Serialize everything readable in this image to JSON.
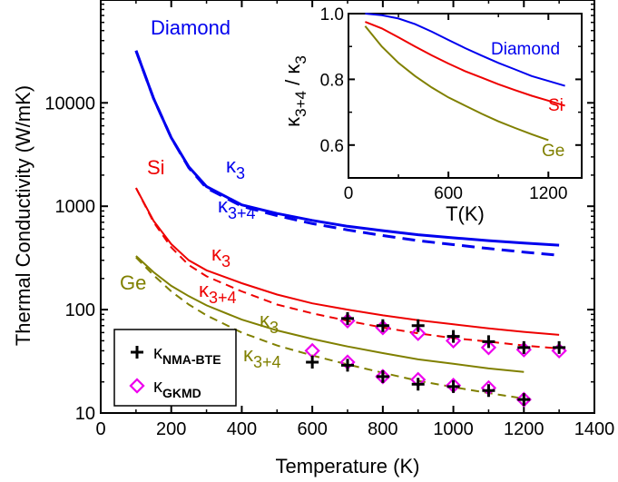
{
  "chart_data": [
    {
      "type": "line",
      "xlabel": "Temperature (K)",
      "ylabel": "Thermal Conductivity (W/mK)",
      "xlim": [
        0,
        1400
      ],
      "ylim": [
        10,
        60000
      ],
      "yscale": "log",
      "xticks": [
        "0",
        "200",
        "400",
        "600",
        "800",
        "1000",
        "1200",
        "1400"
      ],
      "yticks": [
        "10",
        "100",
        "1000",
        "10000"
      ],
      "grid": false,
      "legend": "bottom-left",
      "legend_entries": [
        "κNMA-BTE",
        "κGKMD"
      ],
      "annotations": {
        "diamond": "Diamond",
        "si": "Si",
        "ge": "Ge",
        "k3_diamond": "κ3",
        "k34_diamond": "κ3+4",
        "k3_si": "κ3",
        "k34_si": "κ3+4",
        "k3_ge": "κ3",
        "k34_ge": "κ3+4"
      },
      "colors": {
        "diamond": "#0000ee",
        "si": "#ee0000",
        "ge": "#808000",
        "nma": "#000000",
        "gkmd": "#ee00ee"
      },
      "series": [
        {
          "material": "Diamond",
          "style": "solid",
          "x": [
            100,
            150,
            200,
            250,
            300,
            400,
            500,
            600,
            700,
            800,
            900,
            1000,
            1100,
            1200,
            1300
          ],
          "values": [
            32000,
            11000,
            4600,
            2400,
            1550,
            1030,
            850,
            730,
            640,
            580,
            530,
            495,
            465,
            440,
            420
          ]
        },
        {
          "material": "Diamond",
          "style": "dashed",
          "x": [
            100,
            150,
            200,
            250,
            300,
            400,
            500,
            600,
            700,
            800,
            900,
            1000,
            1100,
            1200,
            1300
          ],
          "values": [
            32000,
            11000,
            4600,
            2350,
            1500,
            1000,
            810,
            680,
            590,
            520,
            465,
            425,
            390,
            360,
            335
          ]
        },
        {
          "material": "Si",
          "style": "solid",
          "x": [
            100,
            150,
            200,
            250,
            300,
            400,
            500,
            600,
            700,
            800,
            900,
            1000,
            1100,
            1200,
            1300
          ],
          "values": [
            1500,
            720,
            430,
            300,
            240,
            180,
            140,
            115,
            100,
            88,
            79,
            72,
            66,
            61,
            57
          ]
        },
        {
          "material": "Si",
          "style": "dashed",
          "x": [
            100,
            150,
            200,
            250,
            300,
            400,
            500,
            600,
            700,
            800,
            900,
            1000,
            1100,
            1200,
            1300
          ],
          "values": [
            1500,
            700,
            400,
            270,
            210,
            150,
            112,
            92,
            78,
            67,
            59,
            53,
            49,
            45,
            42
          ]
        },
        {
          "material": "Ge",
          "style": "solid",
          "x": [
            100,
            150,
            200,
            250,
            300,
            400,
            500,
            600,
            700,
            800,
            900,
            1000,
            1100,
            1200
          ],
          "values": [
            330,
            230,
            170,
            135,
            110,
            80,
            63,
            52,
            44,
            38,
            33,
            30,
            27,
            25
          ]
        },
        {
          "material": "Ge",
          "style": "dashed",
          "x": [
            100,
            150,
            200,
            250,
            300,
            400,
            500,
            600,
            700,
            800,
            900,
            1000,
            1100,
            1200
          ],
          "values": [
            320,
            215,
            150,
            112,
            88,
            60,
            45,
            36,
            29.5,
            24.5,
            20.5,
            17.8,
            15.6,
            13.8
          ]
        }
      ],
      "markers": {
        "nma_bte": {
          "x": [
            700,
            800,
            900,
            1000,
            1100,
            1200,
            1300,
            600,
            700,
            800,
            900,
            1000,
            1100,
            1200
          ],
          "values": [
            82,
            70,
            70,
            55,
            49,
            43,
            43,
            31,
            29,
            22.5,
            19,
            18,
            16.5,
            13.5
          ]
        },
        "gkmd": {
          "x": [
            700,
            800,
            900,
            1000,
            1100,
            1200,
            1300,
            600,
            700,
            800,
            900,
            1000,
            1100,
            1200
          ],
          "values": [
            78,
            67,
            59,
            50,
            43,
            41,
            40,
            40,
            31,
            22.5,
            21,
            18.5,
            17.5,
            13.5
          ]
        }
      }
    },
    {
      "type": "line",
      "inset": true,
      "xlabel": "T(K)",
      "ylabel": "κ3+4 / κ3",
      "xlim": [
        0,
        1400
      ],
      "ylim": [
        0.5,
        1.0
      ],
      "xticks": [
        "0",
        "600",
        "1200"
      ],
      "yticks": [
        "0.6",
        "0.8",
        "1.0"
      ],
      "labels": {
        "diamond": "Diamond",
        "si": "Si",
        "ge": "Ge"
      },
      "series": [
        {
          "material": "Diamond",
          "x": [
            100,
            200,
            300,
            400,
            500,
            600,
            700,
            800,
            900,
            1000,
            1100,
            1200,
            1300
          ],
          "values": [
            1.0,
            0.995,
            0.985,
            0.968,
            0.945,
            0.92,
            0.895,
            0.872,
            0.85,
            0.83,
            0.81,
            0.795,
            0.78
          ]
        },
        {
          "material": "Si",
          "x": [
            100,
            200,
            300,
            400,
            500,
            600,
            700,
            800,
            900,
            1000,
            1100,
            1200,
            1300
          ],
          "values": [
            0.975,
            0.955,
            0.928,
            0.9,
            0.873,
            0.848,
            0.825,
            0.805,
            0.785,
            0.767,
            0.75,
            0.735,
            0.72
          ]
        },
        {
          "material": "Ge",
          "x": [
            100,
            200,
            300,
            400,
            500,
            600,
            700,
            800,
            900,
            1000,
            1100,
            1200
          ],
          "values": [
            0.962,
            0.9,
            0.85,
            0.81,
            0.775,
            0.745,
            0.72,
            0.695,
            0.672,
            0.652,
            0.633,
            0.615
          ]
        }
      ]
    }
  ]
}
